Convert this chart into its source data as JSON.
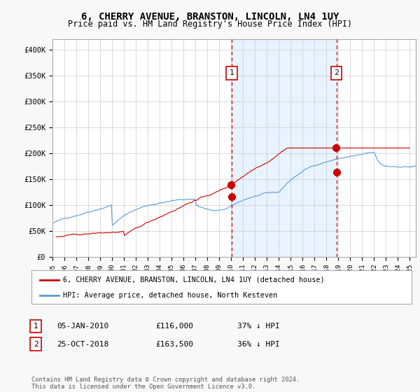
{
  "title": "6, CHERRY AVENUE, BRANSTON, LINCOLN, LN4 1UY",
  "subtitle": "Price paid vs. HM Land Registry's House Price Index (HPI)",
  "ylabel_ticks": [
    "£0",
    "£50K",
    "£100K",
    "£150K",
    "£200K",
    "£250K",
    "£300K",
    "£350K",
    "£400K"
  ],
  "ytick_values": [
    0,
    50000,
    100000,
    150000,
    200000,
    250000,
    300000,
    350000,
    400000
  ],
  "ylim": [
    0,
    420000
  ],
  "xlim_start": 1995.0,
  "xlim_end": 2025.5,
  "hpi_color": "#5b9bd5",
  "hpi_fill_color": "#ddeeff",
  "price_color": "#cc0000",
  "marker1_date": 2010.04,
  "marker1_label": "1",
  "marker1_price": 116000,
  "marker2_date": 2018.83,
  "marker2_label": "2",
  "marker2_price": 163500,
  "legend_house_label": "6, CHERRY AVENUE, BRANSTON, LINCOLN, LN4 1UY (detached house)",
  "legend_hpi_label": "HPI: Average price, detached house, North Kesteven",
  "table_row1": [
    "1",
    "05-JAN-2010",
    "£116,000",
    "37% ↓ HPI"
  ],
  "table_row2": [
    "2",
    "25-OCT-2018",
    "£163,500",
    "36% ↓ HPI"
  ],
  "footer": "Contains HM Land Registry data © Crown copyright and database right 2024.\nThis data is licensed under the Open Government Licence v3.0.",
  "bg_color": "#f8f8f8",
  "plot_bg_color": "#ffffff",
  "title_fontsize": 10,
  "subtitle_fontsize": 8.5,
  "tick_fontsize": 7.5
}
